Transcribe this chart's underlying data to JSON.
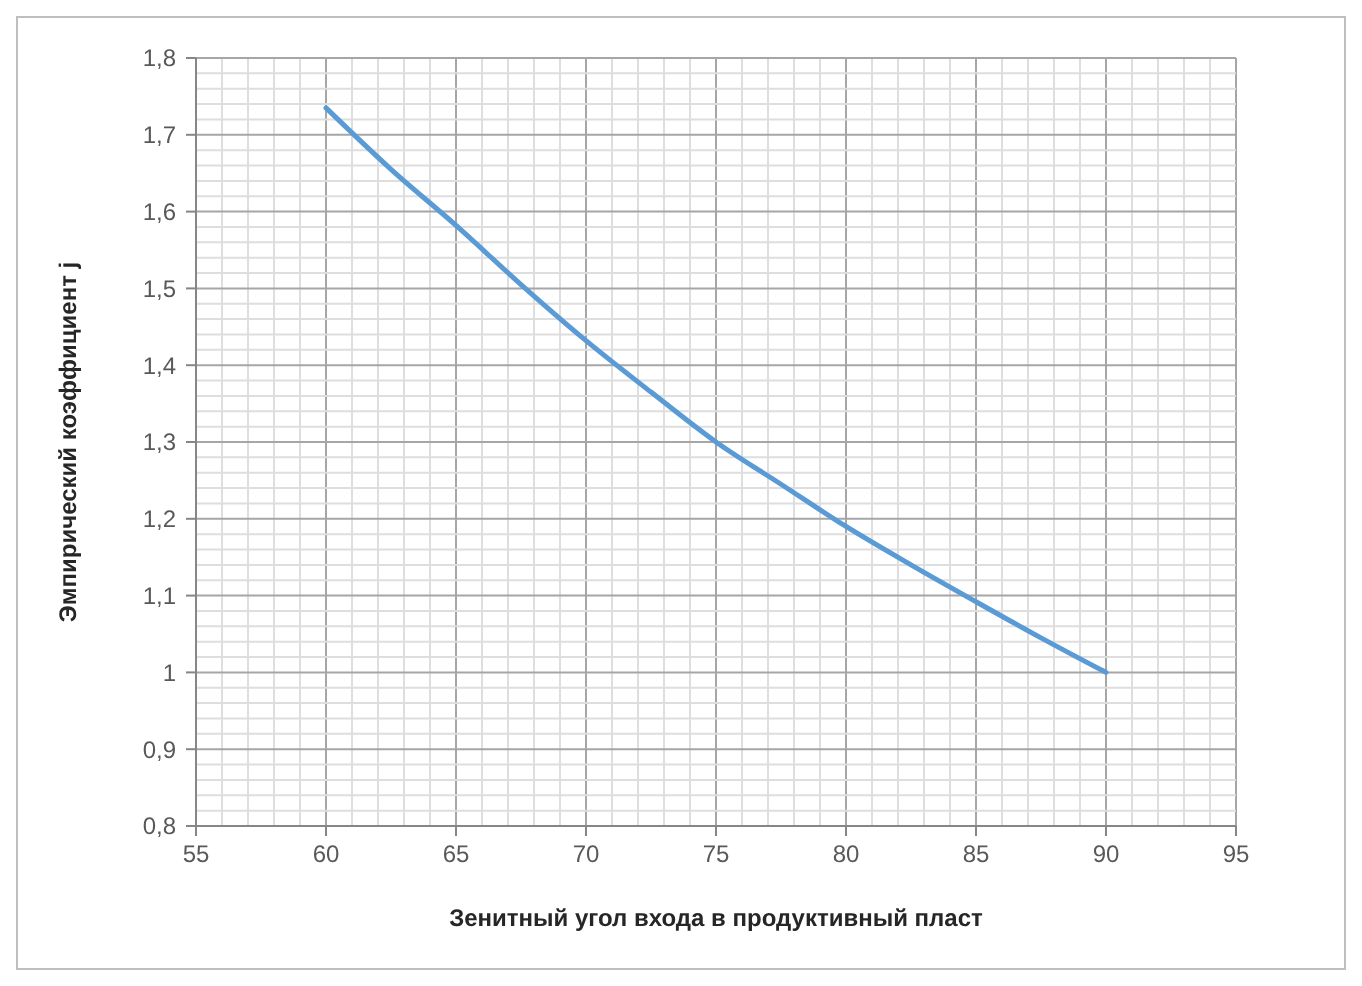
{
  "chart_data": {
    "type": "line",
    "xlabel": "Зенитный угол входа в продуктивный пласт",
    "ylabel": "Эмпирический коэффициент j",
    "x": [
      60,
      62.5,
      65,
      67.5,
      70,
      72.5,
      75,
      77.5,
      80,
      82.5,
      85,
      87.5,
      90
    ],
    "series": [
      {
        "color": "#5b9bd5",
        "values": [
          1.735,
          1.655,
          1.582,
          1.505,
          1.432,
          1.365,
          1.3,
          1.245,
          1.19,
          1.14,
          1.092,
          1.045,
          1.0
        ]
      }
    ],
    "xlim": [
      55,
      95
    ],
    "ylim": [
      0.8,
      1.8
    ],
    "xticks": [
      55,
      {
        "value": 56,
        "label": null
      },
      {
        "value": 57,
        "label": null
      },
      {
        "value": 58,
        "label": null
      },
      {
        "value": 59,
        "label": null
      },
      60,
      {
        "value": 61,
        "label": null
      },
      {
        "value": 62,
        "label": null
      },
      {
        "value": 63,
        "label": null
      },
      {
        "value": 64,
        "label": null
      },
      65,
      {
        "value": 66,
        "label": null
      },
      {
        "value": 67,
        "label": null
      },
      {
        "value": 68,
        "label": null
      },
      {
        "value": 69,
        "label": null
      },
      70,
      {
        "value": 71,
        "label": null
      },
      {
        "value": 72,
        "label": null
      },
      {
        "value": 73,
        "label": null
      },
      {
        "value": 74,
        "label": null
      },
      75,
      {
        "value": 76,
        "label": null
      },
      {
        "value": 77,
        "label": null
      },
      {
        "value": 78,
        "label": null
      },
      {
        "value": 79,
        "label": null
      },
      80,
      {
        "value": 81,
        "label": null
      },
      {
        "value": 82,
        "label": null
      },
      {
        "value": 83,
        "label": null
      },
      {
        "value": 84,
        "label": null
      },
      85,
      {
        "value": 86,
        "label": null
      },
      {
        "value": 87,
        "label": null
      },
      {
        "value": 88,
        "label": null
      },
      {
        "value": 89,
        "label": null
      },
      90,
      {
        "value": 91,
        "label": null
      },
      {
        "value": 92,
        "label": null
      },
      {
        "value": 93,
        "label": null
      },
      {
        "value": 94,
        "label": null
      },
      95
    ],
    "yticks": [
      {
        "value": 0.8,
        "label": "0,8"
      },
      {
        "value": 0.82,
        "label": null
      },
      {
        "value": 0.84,
        "label": null
      },
      {
        "value": 0.86,
        "label": null
      },
      {
        "value": 0.88,
        "label": null
      },
      {
        "value": 0.9,
        "label": "0,9"
      },
      {
        "value": 0.92,
        "label": null
      },
      {
        "value": 0.94,
        "label": null
      },
      {
        "value": 0.96,
        "label": null
      },
      {
        "value": 0.98,
        "label": null
      },
      1,
      {
        "value": 1.02,
        "label": null
      },
      {
        "value": 1.04,
        "label": null
      },
      {
        "value": 1.06,
        "label": null
      },
      {
        "value": 1.08,
        "label": null
      },
      {
        "value": 1.1,
        "label": "1,1"
      },
      {
        "value": 1.12,
        "label": null
      },
      {
        "value": 1.14,
        "label": null
      },
      {
        "value": 1.16,
        "label": null
      },
      {
        "value": 1.18,
        "label": null
      },
      {
        "value": 1.2,
        "label": "1,2"
      },
      {
        "value": 1.22,
        "label": null
      },
      {
        "value": 1.24,
        "label": null
      },
      {
        "value": 1.26,
        "label": null
      },
      {
        "value": 1.28,
        "label": null
      },
      {
        "value": 1.3,
        "label": "1,3"
      },
      {
        "value": 1.32,
        "label": null
      },
      {
        "value": 1.34,
        "label": null
      },
      {
        "value": 1.36,
        "label": null
      },
      {
        "value": 1.38,
        "label": null
      },
      {
        "value": 1.4,
        "label": "1,4"
      },
      {
        "value": 1.42,
        "label": null
      },
      {
        "value": 1.44,
        "label": null
      },
      {
        "value": 1.46,
        "label": null
      },
      {
        "value": 1.48,
        "label": null
      },
      {
        "value": 1.5,
        "label": "1,5"
      },
      {
        "value": 1.52,
        "label": null
      },
      {
        "value": 1.54,
        "label": null
      },
      {
        "value": 1.56,
        "label": null
      },
      {
        "value": 1.58,
        "label": null
      },
      {
        "value": 1.6,
        "label": "1,6"
      },
      {
        "value": 1.62,
        "label": null
      },
      {
        "value": 1.64,
        "label": null
      },
      {
        "value": 1.66,
        "label": null
      },
      {
        "value": 1.68,
        "label": null
      },
      {
        "value": 1.7,
        "label": "1,7"
      },
      {
        "value": 1.72,
        "label": null
      },
      {
        "value": 1.74,
        "label": null
      },
      {
        "value": 1.76,
        "label": null
      },
      {
        "value": 1.78,
        "label": null
      },
      {
        "value": 1.8,
        "label": "1,8"
      }
    ],
    "grid": true
  }
}
